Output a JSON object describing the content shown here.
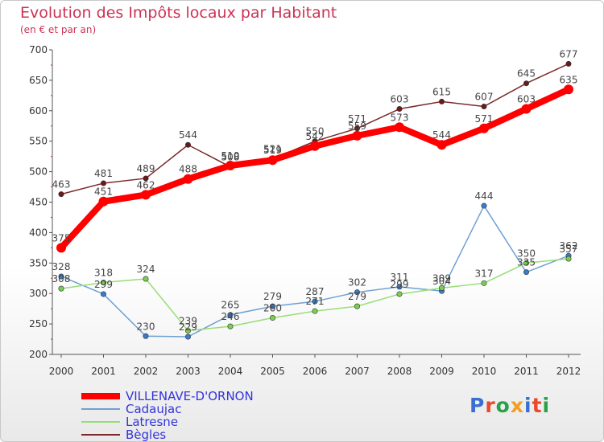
{
  "header": {
    "title": "Evolution des Impôts locaux par Habitant",
    "subtitle": "(en € et par an)"
  },
  "logo": {
    "text": "Proxiti",
    "letter_colors": [
      "#3a6fd0",
      "#e84a2a",
      "#2aa04a",
      "#f0a020",
      "#3a6fd0",
      "#e84a2a",
      "#2aa04a"
    ]
  },
  "chart_data": {
    "type": "line",
    "title": "Evolution des Impôts locaux par Habitant",
    "subtitle": "(en € et par an)",
    "xlabel": "",
    "ylabel": "",
    "x": [
      "2000",
      "2001",
      "2002",
      "2003",
      "2004",
      "2005",
      "2006",
      "2007",
      "2008",
      "2009",
      "2010",
      "2011",
      "2012"
    ],
    "ylim": [
      200,
      700
    ],
    "yticks": [
      200,
      250,
      300,
      350,
      400,
      450,
      500,
      550,
      600,
      650,
      700
    ],
    "grid": false,
    "legend_position": "bottom-left",
    "series": [
      {
        "name": "VILLENAVE-D'ORNON",
        "color": "#ff0000",
        "marker": "#ff0000",
        "label_color": "#444444",
        "label_offset": "above",
        "values": [
          375,
          451,
          462,
          488,
          510,
          519,
          542,
          559,
          573,
          544,
          571,
          603,
          635
        ]
      },
      {
        "name": "Cadaujac",
        "color": "#6ea0d2",
        "marker": "#3a7cc8",
        "label_color": "#444444",
        "label_offset": "above",
        "values": [
          328,
          299,
          230,
          229,
          265,
          279,
          287,
          302,
          311,
          304,
          444,
          335,
          362
        ]
      },
      {
        "name": "Latresne",
        "color": "#99dd77",
        "marker": "#7bcf50",
        "label_color": "#444444",
        "label_offset": "above",
        "values": [
          308,
          318,
          324,
          239,
          246,
          260,
          271,
          279,
          299,
          309,
          317,
          350,
          357
        ]
      },
      {
        "name": "Bègles",
        "color": "#7a2a2a",
        "marker": "#6a1a1a",
        "label_color": "#444444",
        "label_offset": "above",
        "values": [
          463,
          481,
          489,
          544,
          508,
          521,
          550,
          571,
          603,
          615,
          607,
          645,
          677
        ]
      }
    ]
  },
  "legend": {
    "items": [
      {
        "label": "VILLENAVE-D'ORNON",
        "color": "#ff0000",
        "text_color": "#3333dd",
        "thickness": 8
      },
      {
        "label": "Cadaujac",
        "color": "#6ea0d2",
        "text_color": "#3333dd",
        "thickness": 2
      },
      {
        "label": "Latresne",
        "color": "#99dd77",
        "text_color": "#3333dd",
        "thickness": 2
      },
      {
        "label": "Bègles",
        "color": "#7a2a2a",
        "text_color": "#3333dd",
        "thickness": 2
      }
    ]
  }
}
